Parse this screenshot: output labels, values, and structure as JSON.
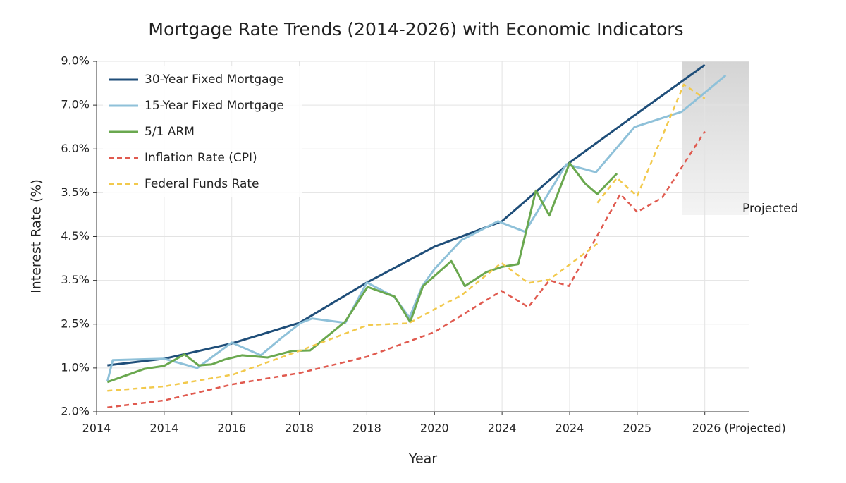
{
  "chart_data": {
    "type": "line",
    "title": "Mortgage Rate Trends (2014-2026) with Economic Indicators",
    "x_label": "Year",
    "y_label": "Interest Rate (%)",
    "annotation": "Projected",
    "xlim": [
      2014,
      2023.65
    ],
    "ylim": [
      1,
      9
    ],
    "xticks": [
      {
        "value": 2014,
        "label": "2014"
      },
      {
        "value": 2015,
        "label": "2014"
      },
      {
        "value": 2016,
        "label": "2016"
      },
      {
        "value": 2017,
        "label": "2018"
      },
      {
        "value": 2018,
        "label": "2018"
      },
      {
        "value": 2019,
        "label": "2020"
      },
      {
        "value": 2020,
        "label": "2024"
      },
      {
        "value": 2021,
        "label": "2024"
      },
      {
        "value": 2022,
        "label": "2025"
      },
      {
        "value": 2023,
        "label": "2026 (Projected)"
      }
    ],
    "yticks": [
      {
        "value": 1,
        "label": "2.0%"
      },
      {
        "value": 2,
        "label": "1.0%"
      },
      {
        "value": 3,
        "label": "2.5%"
      },
      {
        "value": 4,
        "label": "3.5%"
      },
      {
        "value": 5,
        "label": "4.5%"
      },
      {
        "value": 6,
        "label": "3.5%"
      },
      {
        "value": 7,
        "label": "6.0%"
      },
      {
        "value": 8,
        "label": "7.0%"
      },
      {
        "value": 9,
        "label": "9.0%"
      }
    ],
    "grid": true,
    "legend": "top-left",
    "series": [
      {
        "name": "30-Year Fixed Mortgage",
        "color": "#1f4e79",
        "style": "solid",
        "x": [
          2014.16,
          2015,
          2016,
          2017,
          2018,
          2019,
          2020,
          2021,
          2022,
          2023
        ],
        "values": [
          2.06,
          2.21,
          2.56,
          3.03,
          3.95,
          4.77,
          5.35,
          6.69,
          7.81,
          8.92
        ]
      },
      {
        "name": "15-Year Fixed Mortgage",
        "color": "#8fc1d9",
        "style": "solid",
        "x": [
          2014.16,
          2014.24,
          2015,
          2015.49,
          2016,
          2016.43,
          2016.74,
          2017.02,
          2017.19,
          2017.68,
          2018,
          2018.4,
          2018.63,
          2018.82,
          2019,
          2019.4,
          2019.94,
          2020.34,
          2020.95,
          2021.39,
          2021.96,
          2022.66,
          2023.31
        ],
        "values": [
          1.69,
          2.18,
          2.21,
          2.0,
          2.58,
          2.29,
          2.69,
          3.03,
          3.13,
          3.03,
          3.95,
          3.63,
          3.15,
          3.87,
          4.26,
          4.92,
          5.35,
          5.11,
          6.65,
          6.47,
          7.5,
          7.85,
          8.68
        ]
      },
      {
        "name": "5/1 ARM",
        "color": "#6aa84f",
        "style": "solid",
        "x": [
          2014.16,
          2014.71,
          2015,
          2015.3,
          2015.51,
          2015.7,
          2015.89,
          2016.15,
          2016.53,
          2016.9,
          2017.16,
          2017.68,
          2018.01,
          2018.41,
          2018.64,
          2018.83,
          2019.25,
          2019.45,
          2019.77,
          2020,
          2020.24,
          2020.5,
          2020.7,
          2021,
          2021.23,
          2021.41,
          2021.7
        ],
        "values": [
          1.68,
          1.98,
          2.05,
          2.31,
          2.06,
          2.08,
          2.19,
          2.29,
          2.24,
          2.39,
          2.4,
          3.06,
          3.85,
          3.63,
          3.05,
          3.87,
          4.44,
          3.87,
          4.19,
          4.31,
          4.37,
          6.05,
          5.48,
          6.68,
          6.21,
          5.97,
          6.44
        ]
      },
      {
        "name": "Inflation Rate (CPI)",
        "color": "#e05a4f",
        "style": "dashed",
        "x": [
          2014.16,
          2015,
          2016.02,
          2017.02,
          2018.01,
          2019,
          2019.99,
          2020.39,
          2020.7,
          2020.99,
          2021.43,
          2021.75,
          2022,
          2022.37,
          2023
        ],
        "values": [
          1.1,
          1.26,
          1.63,
          1.89,
          2.26,
          2.82,
          3.76,
          3.39,
          4.0,
          3.87,
          5.08,
          5.97,
          5.56,
          5.89,
          7.4
        ]
      },
      {
        "name": "Federal Funds Rate",
        "color": "#f2c94c",
        "style": "dashed",
        "x": [
          2014.16,
          2015,
          2016.02,
          2017.02,
          2018.01,
          2018.62,
          2019,
          2019.4,
          2019.99,
          2020.39,
          2020.7,
          2020.99,
          2021.41,
          null,
          2021.41,
          2021.7,
          2022,
          2022.69,
          2023
        ],
        "values": [
          1.48,
          1.58,
          1.85,
          2.4,
          2.98,
          3.02,
          3.34,
          3.66,
          4.4,
          3.94,
          4.02,
          4.35,
          4.84,
          null,
          5.77,
          6.34,
          5.92,
          8.47,
          8.15
        ]
      }
    ]
  }
}
